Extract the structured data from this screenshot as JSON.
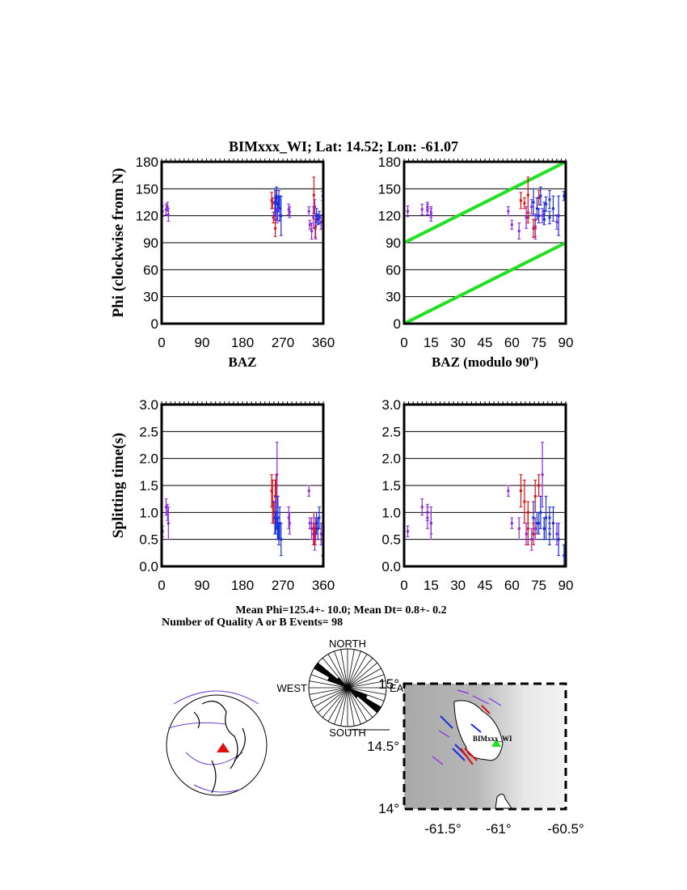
{
  "title": "BIMxxx_WI; Lat:  14.52;  Lon:  -61.07",
  "colors": {
    "quality_a": "#e01010",
    "quality_b": "#1a2ee0",
    "null": "#8a2be2",
    "reference": "#22e022"
  },
  "summary": {
    "mean_line": "Mean Phi=125.4+- 10.0; Mean Dt=  0.8+-  0.2",
    "count_line": "Number of Quality A or B Events= 98"
  },
  "chart_data": [
    {
      "type": "scatter",
      "name": "phi-vs-baz",
      "xlabel": "BAZ",
      "ylabel": "Phi (clockwise from N)",
      "xlim": [
        0,
        360
      ],
      "ylim": [
        0,
        180
      ],
      "xticks": [
        "0",
        "90",
        "180",
        "270",
        "360"
      ],
      "yticks": [
        "0",
        "30",
        "60",
        "90",
        "120",
        "150",
        "180"
      ],
      "value": "phi"
    },
    {
      "type": "scatter",
      "name": "phi-vs-baz-mod90",
      "xlabel": "BAZ (modulo 90",
      "xlabel_sup": "o",
      "xlabel_end": ")",
      "xlim": [
        0,
        90
      ],
      "ylim": [
        0,
        180
      ],
      "xticks": [
        "0",
        "15",
        "30",
        "45",
        "60",
        "75",
        "90"
      ],
      "yticks": [
        "0",
        "30",
        "60",
        "90",
        "120",
        "150",
        "180"
      ],
      "value": "phi",
      "mod90": true,
      "reference_lines": [
        [
          [
            0,
            90
          ],
          [
            90,
            180
          ]
        ],
        [
          [
            0,
            0
          ],
          [
            90,
            90
          ]
        ]
      ]
    },
    {
      "type": "scatter",
      "name": "dt-vs-baz",
      "xlabel": "",
      "ylabel": "Splitting time(s)",
      "xlim": [
        0,
        360
      ],
      "ylim": [
        0,
        3
      ],
      "xticks": [
        "0",
        "90",
        "180",
        "270",
        "360"
      ],
      "yticks": [
        "0.0",
        "0.5",
        "1.0",
        "1.5",
        "2.0",
        "2.5",
        "3.0"
      ],
      "value": "dt"
    },
    {
      "type": "scatter",
      "name": "dt-vs-baz-mod90",
      "xlabel": "",
      "xlim": [
        0,
        90
      ],
      "ylim": [
        0,
        3
      ],
      "xticks": [
        "0",
        "15",
        "30",
        "45",
        "60",
        "75",
        "90"
      ],
      "yticks": [
        "0.0",
        "0.5",
        "1.0",
        "1.5",
        "2.0",
        "2.5",
        "3.0"
      ],
      "value": "dt",
      "mod90": true
    }
  ],
  "events": [
    {
      "baz": 245,
      "phi": 137,
      "phi_err": 9,
      "dt": 1.4,
      "dt_err": 0.3,
      "q": "quality_a"
    },
    {
      "baz": 247,
      "phi": 134,
      "phi_err": 6,
      "dt": 1.2,
      "dt_err": 0.4,
      "q": "quality_a"
    },
    {
      "baz": 249,
      "phi": 118,
      "phi_err": 6,
      "dt": 1.0,
      "dt_err": 0.2,
      "q": "quality_a"
    },
    {
      "baz": 253,
      "phi": 106,
      "phi_err": 9,
      "dt": 1.3,
      "dt_err": 0.3,
      "q": "quality_a"
    },
    {
      "baz": 255,
      "phi": 140,
      "phi_err": 8,
      "dt": 1.5,
      "dt_err": 0.2,
      "q": "quality_a"
    },
    {
      "baz": 252,
      "phi": 135,
      "phi_err": 15,
      "dt": 0.9,
      "dt_err": 0.3,
      "q": "quality_b"
    },
    {
      "baz": 254,
      "phi": 128,
      "phi_err": 12,
      "dt": 0.8,
      "dt_err": 0.2,
      "q": "quality_b"
    },
    {
      "baz": 256,
      "phi": 142,
      "phi_err": 10,
      "dt": 1.0,
      "dt_err": 0.3,
      "q": "quality_b"
    },
    {
      "baz": 258,
      "phi": 125,
      "phi_err": 10,
      "dt": 0.7,
      "dt_err": 0.2,
      "q": "quality_b"
    },
    {
      "baz": 259,
      "phi": 133,
      "phi_err": 8,
      "dt": 0.9,
      "dt_err": 0.4,
      "q": "quality_b"
    },
    {
      "baz": 261,
      "phi": 138,
      "phi_err": 10,
      "dt": 0.6,
      "dt_err": 0.2,
      "q": "quality_b"
    },
    {
      "baz": 263,
      "phi": 128,
      "phi_err": 14,
      "dt": 0.8,
      "dt_err": 0.3,
      "q": "quality_b"
    },
    {
      "baz": 266,
      "phi": 120,
      "phi_err": 22,
      "dt": 0.5,
      "dt_err": 0.3,
      "q": "quality_b"
    },
    {
      "baz": 257,
      "phi": 120,
      "phi_err": 8,
      "dt": 1.7,
      "dt_err": 0.6,
      "q": "null"
    },
    {
      "baz": 283,
      "phi": 127,
      "phi_err": 6,
      "dt": 0.9,
      "dt_err": 0.2,
      "q": "null"
    },
    {
      "baz": 285,
      "phi": 124,
      "phi_err": 6,
      "dt": 0.8,
      "dt_err": 0.2,
      "q": "null"
    },
    {
      "baz": 328,
      "phi": 125,
      "phi_err": 5,
      "dt": 1.4,
      "dt_err": 0.1,
      "q": "null"
    },
    {
      "baz": 330,
      "phi": 110,
      "phi_err": 5,
      "dt": 0.8,
      "dt_err": 0.1,
      "q": "null"
    },
    {
      "baz": 334,
      "phi": 103,
      "phi_err": 9,
      "dt": 0.7,
      "dt_err": 0.2,
      "q": "null"
    },
    {
      "baz": 338,
      "phi": 118,
      "phi_err": 12,
      "dt": 0.6,
      "dt_err": 0.2,
      "q": "null"
    },
    {
      "baz": 341,
      "phi": 130,
      "phi_err": 8,
      "dt": 0.5,
      "dt_err": 0.2,
      "q": "null"
    },
    {
      "baz": 343,
      "phi": 108,
      "phi_err": 14,
      "dt": 0.7,
      "dt_err": 0.2,
      "q": "null"
    },
    {
      "baz": 339,
      "phi": 143,
      "phi_err": 20,
      "dt": 0.7,
      "dt_err": 0.3,
      "q": "quality_a"
    },
    {
      "baz": 342,
      "phi": 106,
      "phi_err": 10,
      "dt": 0.6,
      "dt_err": 0.2,
      "q": "quality_a"
    },
    {
      "baz": 345,
      "phi": 120,
      "phi_err": 8,
      "dt": 0.8,
      "dt_err": 0.2,
      "q": "quality_b"
    },
    {
      "baz": 348,
      "phi": 116,
      "phi_err": 6,
      "dt": 0.7,
      "dt_err": 0.2,
      "q": "quality_b"
    },
    {
      "baz": 351,
      "phi": 118,
      "phi_err": 7,
      "dt": 0.9,
      "dt_err": 0.2,
      "q": "quality_b"
    },
    {
      "baz": 355,
      "phi": 113,
      "phi_err": 8,
      "dt": 0.6,
      "dt_err": 0.2,
      "q": "null"
    },
    {
      "baz": 359,
      "phi": 142,
      "phi_err": 5,
      "dt": 0.2,
      "dt_err": 0.2,
      "q": "quality_b"
    },
    {
      "baz": 2,
      "phi": 125,
      "phi_err": 6,
      "dt": 0.65,
      "dt_err": 0.1,
      "q": "null"
    },
    {
      "baz": 10,
      "phi": 127,
      "phi_err": 6,
      "dt": 1.1,
      "dt_err": 0.15,
      "q": "null"
    },
    {
      "baz": 13,
      "phi": 130,
      "phi_err": 5,
      "dt": 1.0,
      "dt_err": 0.15,
      "q": "null"
    },
    {
      "baz": 15,
      "phi": 121,
      "phi_err": 7,
      "dt": 0.8,
      "dt_err": 0.3,
      "q": "null"
    }
  ],
  "rose": {
    "north": "NORTH",
    "south": "SOUTH",
    "west": "WEST",
    "east": "EAST"
  },
  "map": {
    "station_label": "BIMxxx_WI",
    "yticks": [
      "14°",
      "14.5°",
      "15°"
    ],
    "xticks": [
      "-61.5°",
      "-61°",
      "-60.5°"
    ]
  }
}
